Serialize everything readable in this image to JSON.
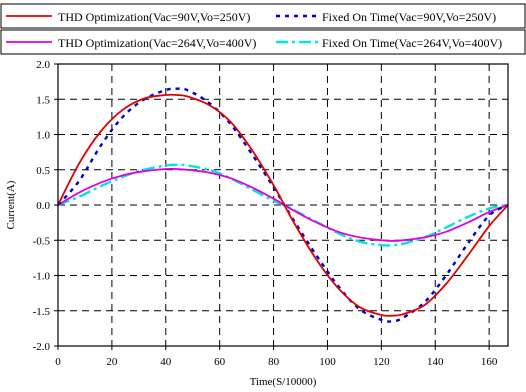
{
  "chart_data": {
    "type": "line",
    "xlabel": "Time(S/10000)",
    "ylabel": "Current(A)",
    "xlim": [
      0,
      167
    ],
    "ylim": [
      -2.0,
      2.0
    ],
    "xticks": [
      "0",
      "20",
      "40",
      "60",
      "80",
      "100",
      "120",
      "140",
      "160"
    ],
    "yticks": [
      "2.0",
      "1.5",
      "1.0",
      "0.5",
      "0.0",
      "-0.5",
      "-1.0",
      "-1.5",
      "-2.0"
    ],
    "grid": true,
    "legend_position": "top",
    "series": [
      {
        "name": "THD Optimization(Vac=90V,Vo=250V)",
        "color": "#e00000",
        "style": "solid",
        "x": [
          0,
          8,
          16,
          24,
          32,
          40,
          44,
          48,
          56,
          64,
          72,
          80,
          84,
          88,
          96,
          104,
          112,
          120,
          124,
          128,
          136,
          144,
          152,
          160,
          167
        ],
        "y": [
          0,
          0.6,
          1.05,
          1.35,
          1.51,
          1.56,
          1.56,
          1.54,
          1.42,
          1.18,
          0.78,
          0.28,
          0.0,
          -0.28,
          -0.78,
          -1.18,
          -1.45,
          -1.56,
          -1.57,
          -1.55,
          -1.42,
          -1.12,
          -0.72,
          -0.3,
          0
        ]
      },
      {
        "name": "Fixed On Time(Vac=90V,Vo=250V)",
        "color": "#0000cc",
        "style": "dotted",
        "x": [
          0,
          8,
          16,
          24,
          32,
          40,
          44,
          48,
          56,
          64,
          72,
          80,
          84,
          88,
          96,
          104,
          112,
          120,
          124,
          128,
          136,
          144,
          152,
          160,
          167
        ],
        "y": [
          0,
          0.35,
          0.85,
          1.25,
          1.5,
          1.63,
          1.65,
          1.63,
          1.45,
          1.15,
          0.72,
          0.25,
          0.0,
          -0.25,
          -0.72,
          -1.15,
          -1.48,
          -1.63,
          -1.65,
          -1.6,
          -1.38,
          -1.0,
          -0.55,
          -0.15,
          0
        ]
      },
      {
        "name": "THD Optimization(Vac=264V,Vo=400V)",
        "color": "#e000e0",
        "style": "solid",
        "x": [
          0,
          8,
          16,
          24,
          32,
          40,
          44,
          48,
          56,
          64,
          72,
          80,
          84,
          88,
          96,
          104,
          112,
          120,
          124,
          128,
          136,
          144,
          152,
          160,
          167
        ],
        "y": [
          0,
          0.18,
          0.32,
          0.42,
          0.48,
          0.51,
          0.51,
          0.5,
          0.46,
          0.38,
          0.25,
          0.09,
          0.0,
          -0.09,
          -0.25,
          -0.38,
          -0.46,
          -0.5,
          -0.51,
          -0.5,
          -0.46,
          -0.38,
          -0.25,
          -0.1,
          0
        ]
      },
      {
        "name": "Fixed On Time(Vac=264V,Vo=400V)",
        "color": "#00e5e5",
        "style": "dashdot",
        "x": [
          0,
          8,
          16,
          24,
          32,
          40,
          44,
          48,
          56,
          64,
          72,
          80,
          84,
          88,
          96,
          104,
          112,
          120,
          124,
          128,
          136,
          144,
          152,
          160,
          167
        ],
        "y": [
          0,
          0.12,
          0.27,
          0.4,
          0.5,
          0.56,
          0.57,
          0.56,
          0.5,
          0.38,
          0.22,
          0.06,
          0.0,
          -0.08,
          -0.24,
          -0.4,
          -0.52,
          -0.57,
          -0.57,
          -0.55,
          -0.46,
          -0.32,
          -0.17,
          -0.05,
          0
        ]
      }
    ]
  }
}
